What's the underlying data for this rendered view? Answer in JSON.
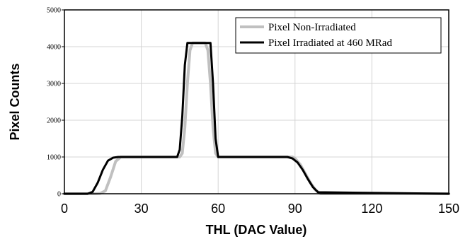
{
  "chart_data": {
    "type": "line",
    "title": "",
    "xlabel": "THL (DAC Value)",
    "ylabel": "Pixel Counts",
    "xlim": [
      0,
      150
    ],
    "ylim": [
      0,
      5000
    ],
    "xticks": [
      0,
      30,
      60,
      90,
      120,
      150
    ],
    "yticks": [
      0,
      1000,
      2000,
      3000,
      4000,
      5000
    ],
    "grid": true,
    "legend_position": "top-right",
    "series": [
      {
        "name": "Pixel Non-Irradiated",
        "color": "#c0c0c0",
        "x": [
          0,
          12,
          14,
          16,
          18,
          20,
          22,
          24,
          45,
          46,
          47,
          48,
          49,
          50,
          55,
          56,
          57,
          58,
          59,
          60,
          89,
          90,
          92,
          94,
          96,
          98,
          100,
          150
        ],
        "y": [
          0,
          0,
          10,
          80,
          450,
          880,
          1000,
          1000,
          1000,
          1100,
          1800,
          3000,
          3900,
          4100,
          4100,
          3900,
          3000,
          1800,
          1100,
          1000,
          1000,
          960,
          800,
          550,
          300,
          100,
          0,
          0
        ]
      },
      {
        "name": "Pixel Irradiated at 460 MRad",
        "color": "#000000",
        "x": [
          0,
          9,
          11,
          13,
          15,
          17,
          19,
          21,
          44,
          45,
          46,
          47,
          48,
          57,
          58,
          59,
          60,
          87,
          89,
          91,
          93,
          95,
          97,
          99,
          150
        ],
        "y": [
          0,
          0,
          50,
          300,
          650,
          900,
          980,
          1000,
          1000,
          1200,
          2100,
          3500,
          4100,
          4100,
          3000,
          1500,
          1000,
          1000,
          960,
          850,
          650,
          400,
          180,
          40,
          0
        ]
      }
    ]
  }
}
